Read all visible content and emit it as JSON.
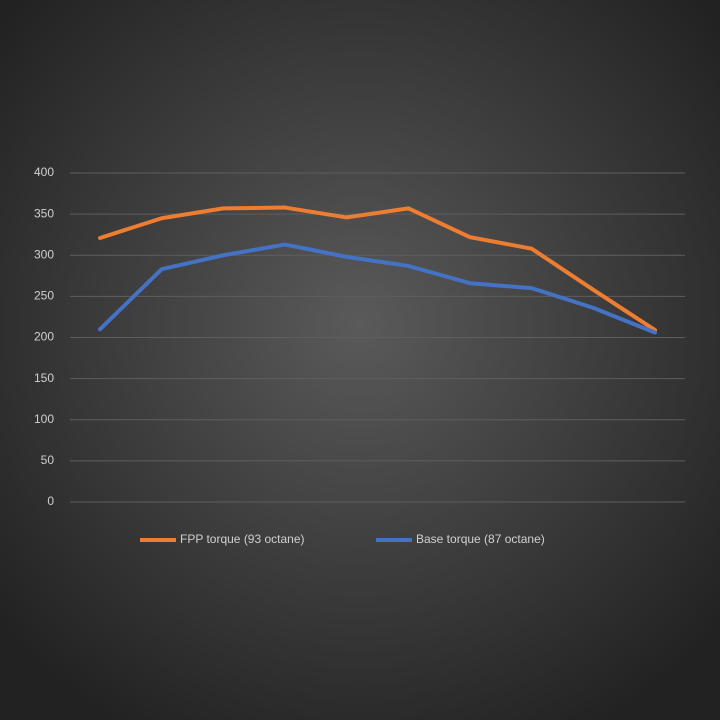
{
  "chart_data": {
    "type": "line",
    "series": [
      {
        "name": "FPP torque (93 octane)",
        "color": "#ed7d31",
        "values": [
          321,
          345,
          357,
          358,
          346,
          357,
          322,
          308,
          258,
          209
        ]
      },
      {
        "name": "Base torque (87 octane)",
        "color": "#4472c4",
        "values": [
          210,
          283,
          300,
          313,
          298,
          287,
          266,
          260,
          236,
          206
        ]
      }
    ],
    "ylim": [
      0,
      400
    ],
    "yticks": [
      0,
      50,
      100,
      150,
      200,
      250,
      300,
      350,
      400
    ],
    "grid": true,
    "legend": "bottom"
  }
}
